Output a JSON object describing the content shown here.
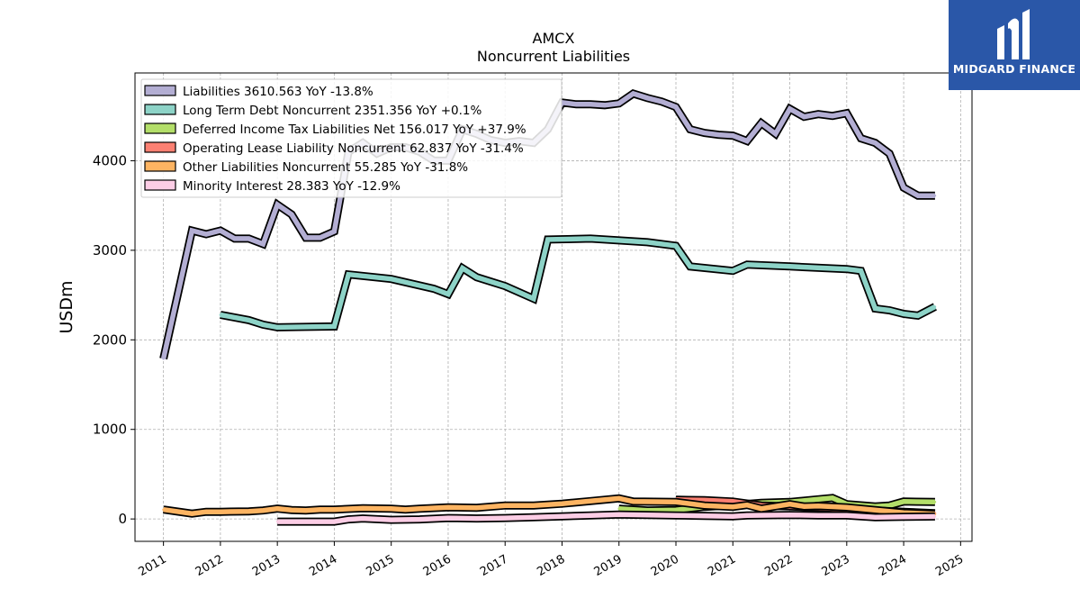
{
  "logo": {
    "text": "MIDGARD FINANCE"
  },
  "chart_data": {
    "type": "area",
    "title": "AMCX",
    "subtitle": "Noncurrent  Liabilities",
    "ylabel": "USDm",
    "xlabel": "",
    "xlim": [
      2010.5,
      2025.2
    ],
    "ylim": [
      -250,
      4980
    ],
    "yticks": [
      0,
      1000,
      2000,
      3000,
      4000
    ],
    "xticks": [
      2011,
      2012,
      2013,
      2014,
      2015,
      2016,
      2017,
      2018,
      2019,
      2020,
      2021,
      2022,
      2023,
      2024,
      2025
    ],
    "grid": true,
    "legend_position": "top-left",
    "series": [
      {
        "name": "Liabilities",
        "legend": "Liabilities  3610.563 YoY -13.8%",
        "color": "#b3aed3",
        "x": [
          2011.0,
          2011.5,
          2011.75,
          2012.0,
          2012.25,
          2012.5,
          2012.75,
          2013.0,
          2013.25,
          2013.5,
          2013.75,
          2014.0,
          2014.25,
          2014.5,
          2014.75,
          2015.0,
          2015.25,
          2015.5,
          2015.75,
          2016.0,
          2016.25,
          2016.5,
          2016.75,
          2017.0,
          2017.25,
          2017.5,
          2017.75,
          2018.0,
          2018.25,
          2018.5,
          2018.75,
          2019.0,
          2019.25,
          2019.5,
          2019.75,
          2020.0,
          2020.25,
          2020.5,
          2020.75,
          2021.0,
          2021.25,
          2021.5,
          2021.75,
          2022.0,
          2022.25,
          2022.5,
          2022.75,
          2023.0,
          2023.25,
          2023.5,
          2023.75,
          2024.0,
          2024.25,
          2024.55
        ],
        "values": [
          1790,
          3220,
          3180,
          3220,
          3130,
          3130,
          3070,
          3510,
          3400,
          3140,
          3140,
          3210,
          4100,
          4200,
          4080,
          4150,
          4150,
          4100,
          4000,
          4000,
          4350,
          4300,
          4230,
          4200,
          4220,
          4200,
          4350,
          4650,
          4630,
          4630,
          4620,
          4640,
          4750,
          4700,
          4660,
          4600,
          4350,
          4310,
          4290,
          4280,
          4220,
          4420,
          4300,
          4580,
          4490,
          4520,
          4500,
          4530,
          4250,
          4200,
          4080,
          3700,
          3610,
          3610
        ]
      },
      {
        "name": "Long Term Debt Noncurrent",
        "legend": "Long Term Debt Noncurrent  2351.356 YoY +0.1%",
        "color": "#8dd3c7",
        "x": [
          2012.0,
          2012.5,
          2012.75,
          2013.0,
          2013.5,
          2014.0,
          2014.25,
          2015.0,
          2015.75,
          2016.0,
          2016.25,
          2016.5,
          2017.0,
          2017.5,
          2017.75,
          2018.5,
          2019.0,
          2019.5,
          2020.0,
          2020.25,
          2021.0,
          2021.25,
          2022.0,
          2023.0,
          2023.25,
          2023.5,
          2023.75,
          2024.0,
          2024.25,
          2024.55
        ],
        "values": [
          2280,
          2220,
          2170,
          2140,
          2145,
          2150,
          2730,
          2680,
          2570,
          2510,
          2800,
          2700,
          2600,
          2460,
          3120,
          3130,
          3110,
          3090,
          3050,
          2820,
          2770,
          2840,
          2820,
          2790,
          2770,
          2350,
          2330,
          2290,
          2270,
          2370
        ]
      },
      {
        "name": "Deferred Income Tax Liabilities Net",
        "legend": "Deferred Income Tax Liabilities Net  156.017 YoY +37.9%",
        "color": "#b3de69",
        "x": [
          2019.0,
          2019.5,
          2020.0,
          2020.5,
          2021.0,
          2021.5,
          2022.0,
          2022.5,
          2022.75,
          2023.0,
          2023.5,
          2023.75,
          2024.0,
          2024.55
        ],
        "values": [
          115,
          95,
          100,
          135,
          155,
          180,
          190,
          220,
          235,
          165,
          140,
          150,
          195,
          190
        ]
      },
      {
        "name": "Operating Lease Liability Noncurrent",
        "legend": "Operating Lease Liability Noncurrent  62.837 YoY -31.4%",
        "color": "#fb8072",
        "x": [
          2020.0,
          2020.5,
          2021.0,
          2021.5,
          2022.0,
          2022.5,
          2023.0,
          2023.5,
          2024.0,
          2024.55
        ],
        "values": [
          215,
          210,
          195,
          150,
          140,
          125,
          110,
          95,
          80,
          65
        ]
      },
      {
        "name": "Other Liabilities Noncurrent",
        "legend": "Other Liabilities Noncurrent  55.285 YoY -31.8%",
        "color": "#fdb462",
        "x": [
          2011.0,
          2011.5,
          2011.75,
          2012.0,
          2012.5,
          2012.75,
          2013.0,
          2013.25,
          2013.5,
          2013.75,
          2014.0,
          2014.5,
          2015.0,
          2015.25,
          2015.5,
          2016.0,
          2016.5,
          2017.0,
          2017.5,
          2018.0,
          2018.5,
          2019.0,
          2019.25,
          2020.0,
          2020.5,
          2021.0,
          2021.25,
          2021.5,
          2022.0,
          2022.25,
          2022.5,
          2023.0,
          2023.5,
          2024.0,
          2024.55
        ],
        "values": [
          105,
          60,
          80,
          80,
          85,
          95,
          115,
          100,
          95,
          105,
          105,
          120,
          115,
          105,
          115,
          130,
          125,
          150,
          150,
          170,
          200,
          230,
          195,
          190,
          150,
          135,
          155,
          115,
          165,
          140,
          145,
          130,
          100,
          70,
          55
        ]
      },
      {
        "name": "Minority Interest",
        "legend": "Minority Interest  28.383 YoY -12.9%",
        "color": "#fccde5",
        "x": [
          2013.0,
          2013.5,
          2014.0,
          2014.25,
          2014.5,
          2015.0,
          2015.5,
          2016.0,
          2016.5,
          2017.0,
          2017.5,
          2018.0,
          2018.5,
          2019.0,
          2019.5,
          2020.0,
          2020.5,
          2021.0,
          2021.25,
          2022.0,
          2022.5,
          2023.0,
          2023.25,
          2023.5,
          2024.0,
          2024.55
        ],
        "values": [
          -30,
          -30,
          -30,
          -5,
          5,
          -10,
          -5,
          10,
          5,
          10,
          20,
          30,
          40,
          50,
          45,
          40,
          35,
          30,
          40,
          45,
          40,
          40,
          30,
          20,
          25,
          28
        ]
      }
    ]
  }
}
